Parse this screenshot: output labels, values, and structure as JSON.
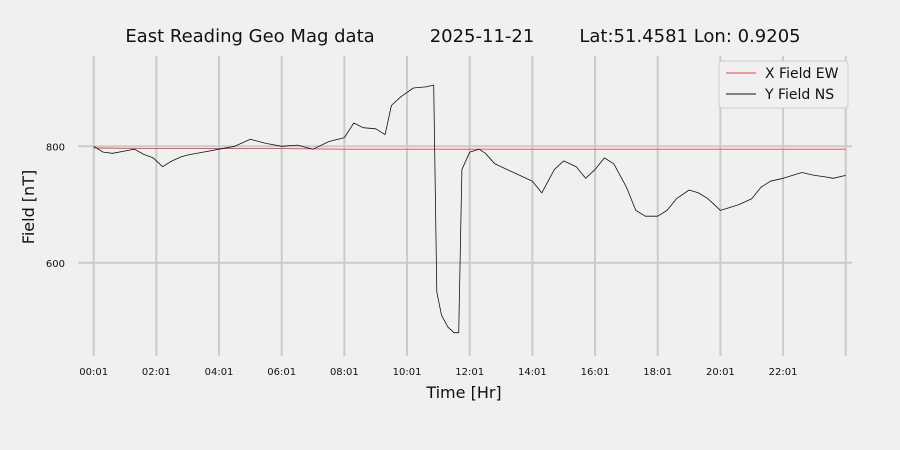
{
  "chart_data": {
    "type": "line",
    "title_parts": [
      "East Reading Geo Mag data",
      "2025-11-21",
      "Lat:51.4581  Lon: 0.9205"
    ],
    "xlabel": "Time  [Hr]",
    "ylabel": "Field  [nT]",
    "xlim": [
      -0.5,
      24.2
    ],
    "ylim": [
      440,
      955
    ],
    "x_ticks": [
      0,
      2,
      4,
      6,
      8,
      10,
      12,
      14,
      16,
      18,
      20,
      22
    ],
    "x_tick_labels": [
      "00:01",
      "02:01",
      "04:01",
      "06:01",
      "08:01",
      "10:01",
      "12:01",
      "14:01",
      "16:01",
      "18:01",
      "20:01",
      "22:01"
    ],
    "x_gridlines": [
      0,
      2,
      4,
      6,
      8,
      10,
      12,
      14,
      16,
      18,
      20,
      22,
      24
    ],
    "y_ticks": [
      600,
      800
    ],
    "y_tick_labels": [
      "600",
      "800"
    ],
    "grid": true,
    "legend_position": "top-right",
    "series": [
      {
        "name": "X Field EW",
        "color": "#e8404a",
        "x": [
          0,
          2,
          4,
          6,
          8,
          10,
          12,
          14,
          16,
          18,
          20,
          22,
          24
        ],
        "y": [
          797,
          796,
          796,
          796,
          795,
          795,
          795,
          795,
          795,
          795,
          795,
          795,
          795
        ]
      },
      {
        "name": "Y Field NS",
        "color": "#111111",
        "x": [
          0,
          0.3,
          0.6,
          1,
          1.3,
          1.6,
          1.9,
          2.2,
          2.5,
          2.8,
          3,
          3.5,
          4,
          4.5,
          5,
          5.5,
          6,
          6.5,
          7,
          7.5,
          8,
          8.3,
          8.6,
          9,
          9.3,
          9.5,
          9.8,
          10.2,
          10.6,
          10.85,
          10.95,
          11.1,
          11.3,
          11.5,
          11.65,
          11.75,
          12,
          12.3,
          12.5,
          12.8,
          13.2,
          13.6,
          14,
          14.3,
          14.7,
          15,
          15.4,
          15.7,
          16,
          16.3,
          16.6,
          17,
          17.3,
          17.6,
          18,
          18.3,
          18.6,
          19,
          19.3,
          19.6,
          20,
          20.3,
          20.6,
          21,
          21.3,
          21.6,
          22,
          22.3,
          22.6,
          23,
          23.3,
          23.6,
          24
        ],
        "y": [
          800,
          790,
          788,
          792,
          795,
          786,
          780,
          765,
          775,
          782,
          785,
          790,
          795,
          800,
          812,
          805,
          800,
          802,
          795,
          808,
          815,
          840,
          832,
          830,
          820,
          870,
          885,
          900,
          902,
          905,
          550,
          510,
          490,
          480,
          480,
          760,
          790,
          795,
          788,
          770,
          760,
          750,
          740,
          720,
          760,
          775,
          765,
          745,
          760,
          780,
          770,
          730,
          690,
          680,
          680,
          690,
          710,
          725,
          720,
          710,
          690,
          695,
          700,
          710,
          730,
          740,
          745,
          750,
          755,
          750,
          748,
          745,
          750
        ]
      }
    ]
  }
}
